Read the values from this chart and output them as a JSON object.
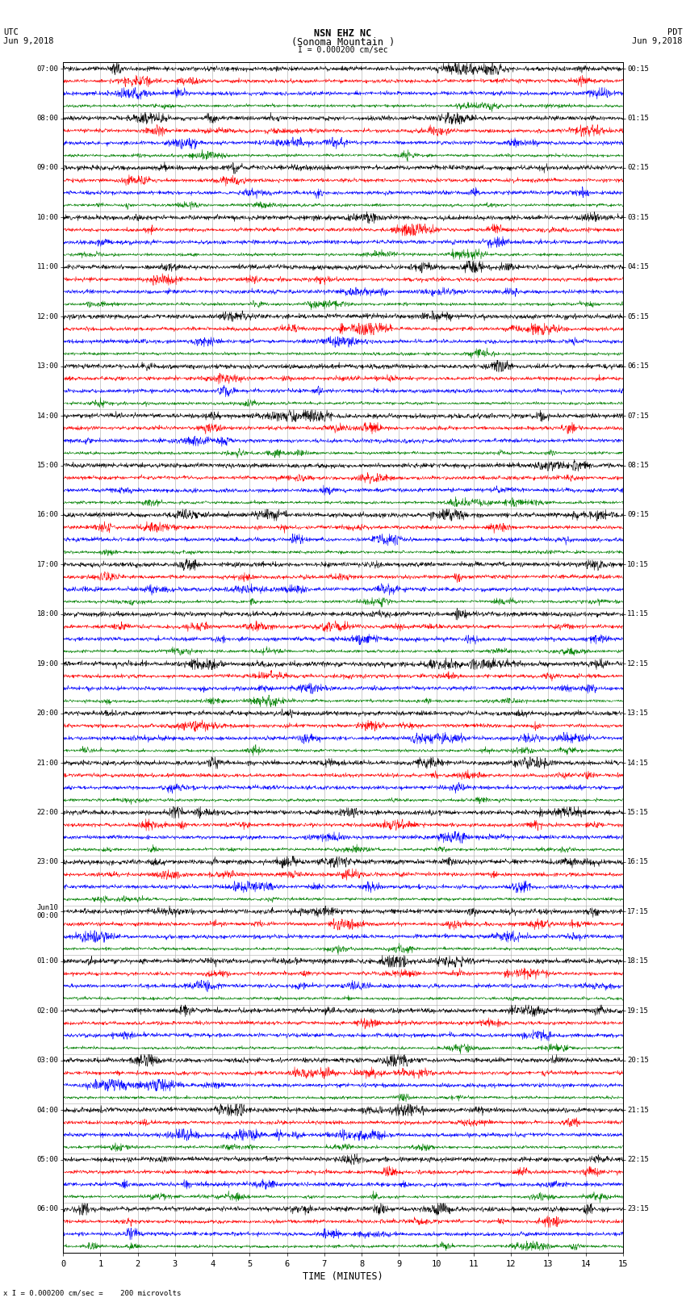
{
  "title_line1": "NSN EHZ NC",
  "title_line2": "(Sonoma Mountain )",
  "title_line3": "I = 0.000200 cm/sec",
  "left_label_line1": "UTC",
  "left_label_line2": "Jun 9,2018",
  "right_label_line1": "PDT",
  "right_label_line2": "Jun 9,2018",
  "bottom_label": "TIME (MINUTES)",
  "bottom_note": "x I = 0.000200 cm/sec =    200 microvolts",
  "utc_times": [
    "07:00",
    "08:00",
    "09:00",
    "10:00",
    "11:00",
    "12:00",
    "13:00",
    "14:00",
    "15:00",
    "16:00",
    "17:00",
    "18:00",
    "19:00",
    "20:00",
    "21:00",
    "22:00",
    "23:00",
    "Jun10\n00:00",
    "01:00",
    "02:00",
    "03:00",
    "04:00",
    "05:00",
    "06:00"
  ],
  "pdt_times": [
    "00:15",
    "01:15",
    "02:15",
    "03:15",
    "04:15",
    "05:15",
    "06:15",
    "07:15",
    "08:15",
    "09:15",
    "10:15",
    "11:15",
    "12:15",
    "13:15",
    "14:15",
    "15:15",
    "16:15",
    "17:15",
    "18:15",
    "19:15",
    "20:15",
    "21:15",
    "22:15",
    "23:15"
  ],
  "n_rows": 24,
  "n_traces_per_row": 4,
  "trace_colors": [
    "black",
    "red",
    "blue",
    "green"
  ],
  "x_min": 0,
  "x_max": 15,
  "x_ticks": [
    0,
    1,
    2,
    3,
    4,
    5,
    6,
    7,
    8,
    9,
    10,
    11,
    12,
    13,
    14,
    15
  ],
  "bg_color": "white",
  "fig_width": 8.5,
  "fig_height": 16.13,
  "dpi": 100,
  "amp_black": 0.35,
  "amp_red": 0.28,
  "amp_blue": 0.3,
  "amp_green": 0.22,
  "trace_lw": 0.4,
  "grid_color": "#aaaaaa",
  "grid_lw": 0.4
}
